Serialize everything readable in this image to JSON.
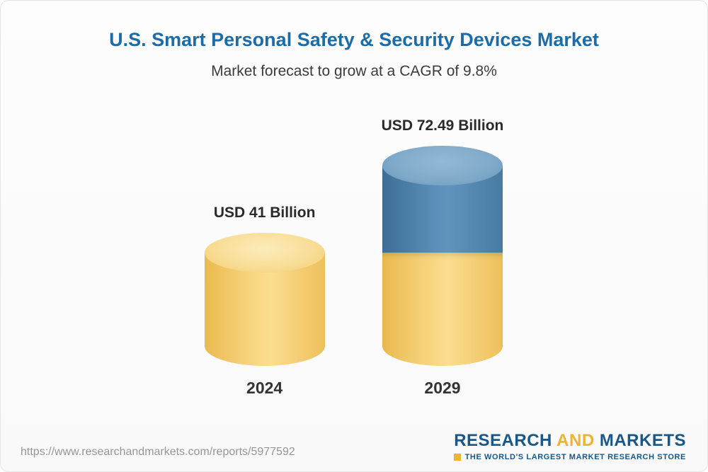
{
  "page": {
    "title": "U.S. Smart Personal Safety & Security Devices Market",
    "subtitle": "Market forecast to grow at a CAGR of 9.8%"
  },
  "chart_data": {
    "type": "bar",
    "title": "U.S. Smart Personal Safety & Security Devices Market",
    "subtitle": "Market forecast to grow at a CAGR of 9.8%",
    "categories": [
      "2024",
      "2029"
    ],
    "values": [
      41,
      72.49
    ],
    "value_labels": [
      "USD 41 Billion",
      "USD 72.49 Billion"
    ],
    "unit": "USD Billion",
    "cagr_percent": 9.8,
    "bar_style": "3d-cylinder",
    "colors": {
      "base_segment": "#F5CE6E",
      "growth_segment": "#4C81AC",
      "title_text": "#1B6CA8"
    },
    "legend_position": "none",
    "grid": false,
    "notes": "2029 cylinder is stacked: yellow base equals 2024 value, blue top segment shows growth to 72.49"
  },
  "footer": {
    "url": "https://www.researchandmarkets.com/reports/5977592",
    "logo": {
      "word1": "RESEARCH",
      "word2": "AND",
      "word3": "MARKETS",
      "tagline": "THE WORLD'S LARGEST MARKET RESEARCH STORE"
    }
  }
}
